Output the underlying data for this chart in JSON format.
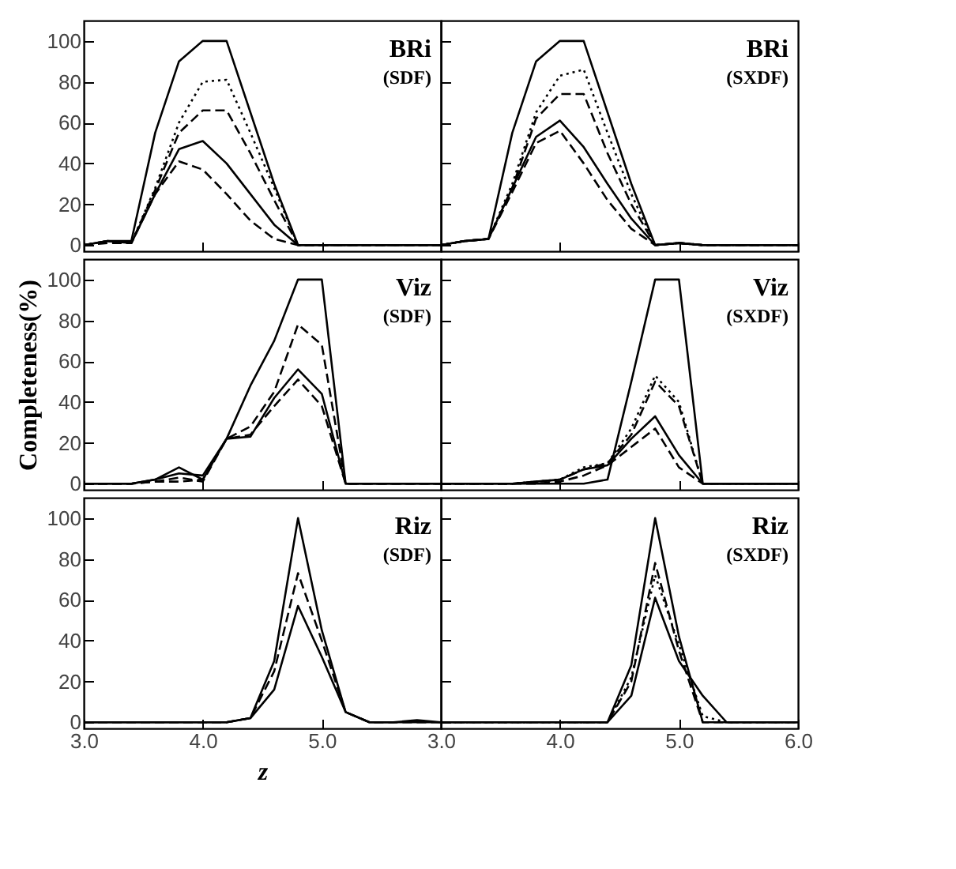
{
  "chart_data": [
    {
      "type": "line",
      "annotations": [
        "BRi",
        "(SDF)"
      ],
      "x": [
        3.0,
        3.2,
        3.4,
        3.6,
        3.8,
        4.0,
        4.2,
        4.4,
        4.6,
        4.8,
        5.0,
        5.2,
        5.4,
        5.6,
        5.8,
        6.0
      ],
      "xlim": [
        3.0,
        6.0
      ],
      "xticks": [
        3,
        4,
        5,
        6
      ],
      "ylim": [
        -3,
        110
      ],
      "yticks": [
        0,
        20,
        40,
        60,
        80,
        100
      ],
      "tick_labels": "y",
      "series": [
        {
          "color": "#000000",
          "line_style": "solid",
          "values": [
            0,
            2,
            2,
            55,
            90,
            100,
            100,
            65,
            30,
            0,
            0,
            0,
            0,
            0,
            0,
            0
          ]
        },
        {
          "color": "#000000",
          "line_style": "dotted",
          "values": [
            0,
            2,
            1,
            28,
            60,
            80,
            81,
            55,
            28,
            0,
            0,
            0,
            0,
            0,
            0,
            0
          ]
        },
        {
          "color": "#000000",
          "line_style": "dashed",
          "values": [
            0,
            2,
            1,
            27,
            55,
            66,
            66,
            45,
            22,
            0,
            0,
            0,
            0,
            0,
            0,
            0
          ]
        },
        {
          "color": "#000000",
          "line_style": "solid",
          "values": [
            0,
            2,
            1,
            25,
            47,
            51,
            40,
            25,
            10,
            0,
            0,
            0,
            0,
            0,
            0,
            0
          ]
        },
        {
          "color": "#000000",
          "line_style": "dashed",
          "values": [
            0,
            1,
            1,
            25,
            41,
            37,
            25,
            12,
            3,
            0,
            0,
            0,
            0,
            0,
            0,
            0
          ]
        }
      ]
    },
    {
      "type": "line",
      "annotations": [
        "BRi",
        "(SXDF)"
      ],
      "x": [
        3.0,
        3.2,
        3.4,
        3.6,
        3.8,
        4.0,
        4.2,
        4.4,
        4.6,
        4.8,
        5.0,
        5.2,
        5.4,
        5.6,
        5.8,
        6.0
      ],
      "xlim": [
        3.0,
        6.0
      ],
      "xticks": [
        3,
        4,
        5,
        6
      ],
      "ylim": [
        -3,
        110
      ],
      "yticks": [
        0,
        20,
        40,
        60,
        80,
        100
      ],
      "tick_labels": false,
      "series": [
        {
          "color": "#000000",
          "line_style": "solid",
          "values": [
            0,
            2,
            3,
            55,
            90,
            100,
            100,
            65,
            30,
            0,
            1,
            0,
            0,
            0,
            0,
            0
          ]
        },
        {
          "color": "#000000",
          "line_style": "dotted",
          "values": [
            0,
            2,
            3,
            30,
            65,
            83,
            86,
            55,
            25,
            0,
            1,
            0,
            0,
            0,
            0,
            0
          ]
        },
        {
          "color": "#000000",
          "line_style": "dashed",
          "values": [
            0,
            2,
            3,
            28,
            62,
            74,
            74,
            45,
            20,
            0,
            1,
            0,
            0,
            0,
            0,
            0
          ]
        },
        {
          "color": "#000000",
          "line_style": "solid",
          "values": [
            0,
            2,
            3,
            28,
            53,
            61,
            48,
            30,
            13,
            0,
            1,
            0,
            0,
            0,
            0,
            0
          ]
        },
        {
          "color": "#000000",
          "line_style": "dashed",
          "values": [
            0,
            2,
            3,
            26,
            50,
            56,
            40,
            22,
            8,
            0,
            1,
            0,
            0,
            0,
            0,
            0
          ]
        }
      ]
    },
    {
      "type": "line",
      "annotations": [
        "Viz",
        "(SDF)"
      ],
      "ylabel": "Completeness(%)",
      "x": [
        3.0,
        3.2,
        3.4,
        3.6,
        3.8,
        4.0,
        4.2,
        4.4,
        4.6,
        4.8,
        5.0,
        5.2,
        5.4,
        5.6,
        5.8,
        6.0
      ],
      "xlim": [
        3.0,
        6.0
      ],
      "xticks": [
        3,
        4,
        5,
        6
      ],
      "ylim": [
        -3,
        110
      ],
      "yticks": [
        0,
        20,
        40,
        60,
        80,
        100
      ],
      "tick_labels": "y",
      "series": [
        {
          "color": "#000000",
          "line_style": "solid",
          "values": [
            0,
            0,
            0,
            2,
            8,
            2,
            22,
            48,
            70,
            100,
            100,
            0,
            0,
            0,
            0,
            0
          ]
        },
        {
          "color": "#000000",
          "line_style": "dashed",
          "values": [
            0,
            0,
            0,
            1,
            3,
            1,
            22,
            28,
            45,
            78,
            68,
            0,
            0,
            0,
            0,
            0
          ]
        },
        {
          "color": "#000000",
          "line_style": "solid",
          "values": [
            0,
            0,
            0,
            2,
            5,
            4,
            22,
            23,
            42,
            56,
            44,
            0,
            0,
            0,
            0,
            0
          ]
        },
        {
          "color": "#000000",
          "line_style": "dashed",
          "values": [
            0,
            0,
            0,
            1,
            1,
            2,
            22,
            24,
            38,
            51,
            38,
            0,
            0,
            0,
            0,
            0
          ]
        }
      ]
    },
    {
      "type": "line",
      "annotations": [
        "Viz",
        "(SXDF)"
      ],
      "x": [
        3.0,
        3.2,
        3.4,
        3.6,
        3.8,
        4.0,
        4.2,
        4.4,
        4.6,
        4.8,
        5.0,
        5.2,
        5.4,
        5.6,
        5.8,
        6.0
      ],
      "xlim": [
        3.0,
        6.0
      ],
      "xticks": [
        3,
        4,
        5,
        6
      ],
      "ylim": [
        -3,
        110
      ],
      "yticks": [
        0,
        20,
        40,
        60,
        80,
        100
      ],
      "tick_labels": false,
      "series": [
        {
          "color": "#000000",
          "line_style": "solid",
          "values": [
            0,
            0,
            0,
            0,
            0,
            0,
            0,
            2,
            50,
            100,
            100,
            0,
            0,
            0,
            0,
            0
          ]
        },
        {
          "color": "#000000",
          "line_style": "dotted",
          "values": [
            0,
            0,
            0,
            0,
            1,
            2,
            8,
            10,
            27,
            53,
            40,
            0,
            0,
            0,
            0,
            0
          ]
        },
        {
          "color": "#000000",
          "line_style": "dashed",
          "values": [
            0,
            0,
            0,
            0,
            1,
            2,
            7,
            10,
            24,
            50,
            38,
            0,
            0,
            0,
            0,
            0
          ]
        },
        {
          "color": "#000000",
          "line_style": "solid",
          "values": [
            0,
            0,
            0,
            0,
            1,
            2,
            7,
            9,
            22,
            33,
            14,
            0,
            0,
            0,
            0,
            0
          ]
        },
        {
          "color": "#000000",
          "line_style": "dashed",
          "values": [
            0,
            0,
            0,
            0,
            0,
            1,
            4,
            9,
            18,
            27,
            8,
            0,
            0,
            0,
            0,
            0
          ]
        }
      ]
    },
    {
      "type": "line",
      "annotations": [
        "Riz",
        "(SDF)"
      ],
      "xlabel": "z",
      "x": [
        3.0,
        3.2,
        3.4,
        3.6,
        3.8,
        4.0,
        4.2,
        4.4,
        4.6,
        4.8,
        5.0,
        5.2,
        5.4,
        5.6,
        5.8,
        6.0
      ],
      "xlim": [
        3.0,
        6.0
      ],
      "xticks": [
        {
          "value": 3,
          "label": "3.0"
        },
        {
          "value": 4,
          "label": "4.0"
        },
        {
          "value": 5,
          "label": "5.0"
        },
        {
          "value": 6,
          "label": null
        }
      ],
      "ylim": [
        -3,
        110
      ],
      "yticks": [
        0,
        20,
        40,
        60,
        80,
        100
      ],
      "series": [
        {
          "color": "#000000",
          "line_style": "solid",
          "values": [
            0,
            0,
            0,
            0,
            0,
            0,
            0,
            2,
            30,
            100,
            45,
            5,
            0,
            0,
            0,
            0
          ]
        },
        {
          "color": "#000000",
          "line_style": "dashed",
          "values": [
            0,
            0,
            0,
            0,
            0,
            0,
            0,
            2,
            25,
            73,
            40,
            5,
            0,
            0,
            0,
            0
          ]
        },
        {
          "color": "#000000",
          "line_style": "solid",
          "values": [
            0,
            0,
            0,
            0,
            0,
            0,
            0,
            2,
            16,
            57,
            32,
            5,
            0,
            0,
            1,
            0
          ]
        }
      ]
    },
    {
      "type": "line",
      "annotations": [
        "Riz",
        "(SXDF)"
      ],
      "x": [
        3.0,
        3.2,
        3.4,
        3.6,
        3.8,
        4.0,
        4.2,
        4.4,
        4.6,
        4.8,
        5.0,
        5.2,
        5.4,
        5.6,
        5.8,
        6.0
      ],
      "xlim": [
        3.0,
        6.0
      ],
      "xticks": [
        {
          "value": 3,
          "label": "3.0"
        },
        {
          "value": 4,
          "label": "4.0"
        },
        {
          "value": 5,
          "label": "5.0"
        },
        {
          "value": 6,
          "label": "6.0"
        }
      ],
      "ylim": [
        -3,
        110
      ],
      "yticks": [
        0,
        20,
        40,
        60,
        80,
        100
      ],
      "tick_labels": "x",
      "series": [
        {
          "color": "#000000",
          "line_style": "solid",
          "values": [
            0,
            0,
            0,
            0,
            0,
            0,
            0,
            0,
            28,
            100,
            42,
            0,
            0,
            0,
            0,
            0
          ]
        },
        {
          "color": "#000000",
          "line_style": "dotted",
          "values": [
            0,
            0,
            0,
            0,
            0,
            0,
            0,
            0,
            22,
            72,
            38,
            3,
            0,
            0,
            0,
            0
          ]
        },
        {
          "color": "#000000",
          "line_style": "dashed",
          "values": [
            0,
            0,
            0,
            0,
            0,
            0,
            0,
            0,
            20,
            78,
            35,
            0,
            0,
            0,
            0,
            0
          ]
        },
        {
          "color": "#000000",
          "line_style": "solid",
          "values": [
            0,
            0,
            0,
            0,
            0,
            0,
            0,
            0,
            13,
            61,
            30,
            13,
            0,
            0,
            0,
            0
          ]
        }
      ]
    }
  ]
}
